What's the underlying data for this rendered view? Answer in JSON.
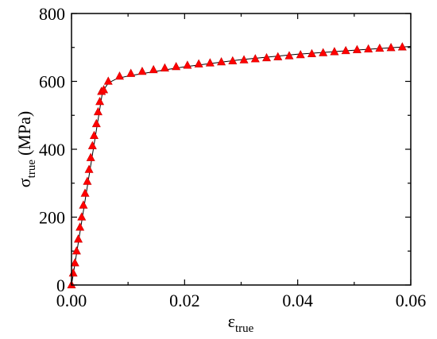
{
  "chart_data": {
    "type": "scatter",
    "title": "",
    "xlabel": {
      "symbol": "ε",
      "subscript": "true"
    },
    "ylabel": {
      "symbol": "σ",
      "subscript": "true",
      "unit": "(MPa)"
    },
    "xlim": [
      0,
      0.06
    ],
    "ylim": [
      0,
      800
    ],
    "xticks": [
      0,
      0.01,
      0.02,
      0.03,
      0.04,
      0.05,
      0.06
    ],
    "xtick_labels": [
      "0.00",
      "",
      "0.02",
      "",
      "0.04",
      "",
      "0.06"
    ],
    "yticks": [
      0,
      100,
      200,
      300,
      400,
      500,
      600,
      700,
      800
    ],
    "ytick_labels": [
      "0",
      "",
      "200",
      "",
      "400",
      "",
      "600",
      "",
      "800"
    ],
    "grid": false,
    "legend": "none",
    "series": [
      {
        "marker": "triangle",
        "color": "#ff0000",
        "edge_color": "#cc0000",
        "x": [
          0.0,
          0.0003,
          0.0006,
          0.0009,
          0.0012,
          0.0015,
          0.0018,
          0.0021,
          0.0024,
          0.0028,
          0.0031,
          0.0034,
          0.0037,
          0.004,
          0.0044,
          0.0047,
          0.005,
          0.0053,
          0.0057,
          0.0065,
          0.0085,
          0.0105,
          0.0125,
          0.0145,
          0.0165,
          0.0185,
          0.0205,
          0.0225,
          0.0245,
          0.0265,
          0.0285,
          0.0305,
          0.0325,
          0.0345,
          0.0365,
          0.0385,
          0.0405,
          0.0425,
          0.0445,
          0.0465,
          0.0485,
          0.0505,
          0.0525,
          0.0545,
          0.0565,
          0.0585
        ],
        "y": [
          0,
          35,
          65,
          100,
          135,
          170,
          200,
          235,
          270,
          305,
          340,
          375,
          410,
          440,
          475,
          510,
          540,
          570,
          575,
          600,
          615,
          623,
          629,
          634,
          639,
          643,
          647,
          651,
          654,
          657,
          660,
          663,
          666,
          669,
          672,
          675,
          678,
          681,
          684,
          687,
          690,
          693,
          695,
          697,
          699,
          701
        ]
      },
      {
        "marker": "none",
        "line_color": "#000000",
        "x": [
          0.0,
          0.0055,
          0.0065,
          0.008,
          0.01,
          0.015,
          0.02,
          0.03,
          0.04,
          0.05,
          0.06
        ],
        "y": [
          0,
          570,
          595,
          608,
          616,
          630,
          643,
          664,
          680,
          692,
          703
        ]
      }
    ]
  }
}
